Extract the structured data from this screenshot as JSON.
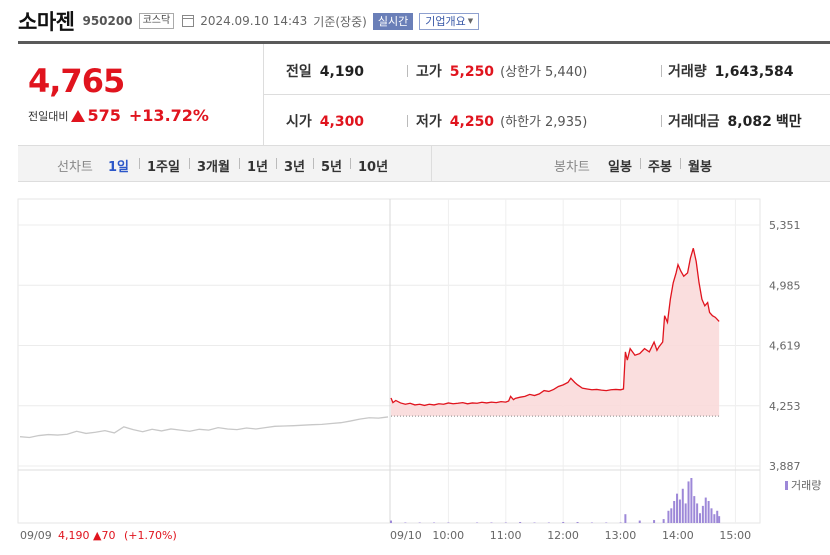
{
  "header": {
    "name": "소마젠",
    "code": "950200",
    "market": "코스닥",
    "timestamp": "2024.09.10 14:43",
    "basis": "기준(장중)",
    "realtime_label": "실시간",
    "company_button": "기업개요"
  },
  "summary": {
    "price": "4,765",
    "change_label": "전일대비",
    "change": "575",
    "change_pct": "+13.72%",
    "prev_close_label": "전일",
    "prev_close": "4,190",
    "high_label": "고가",
    "high": "5,250",
    "upper_limit_label": "(상한가",
    "upper_limit": "5,440)",
    "volume_label": "거래량",
    "volume": "1,643,584",
    "open_label": "시가",
    "open": "4,300",
    "low_label": "저가",
    "low": "4,250",
    "lower_limit_label": "(하한가",
    "lower_limit": "2,935)",
    "amount_label": "거래대금",
    "amount": "8,082",
    "amount_unit": "백만"
  },
  "tabs": {
    "line_label": "선차트",
    "periods": [
      "1일",
      "1주일",
      "3개월",
      "1년",
      "3년",
      "5년",
      "10년"
    ],
    "active_period": "1일",
    "candle_label": "봉차트",
    "candles": [
      "일봉",
      "주봉",
      "월봉"
    ]
  },
  "chart_data": {
    "type": "line",
    "y_ticks": [
      "5,351",
      "4,985",
      "4,619",
      "4,253",
      "3,887"
    ],
    "ylim": [
      3887,
      5351
    ],
    "volume_legend": "거래량",
    "x_ticks": [
      "09/09",
      "09/10",
      "10:00",
      "11:00",
      "12:00",
      "13:00",
      "14:00",
      "15:00"
    ],
    "prev_day_label": "09/09",
    "prev_day_close": "4,190",
    "prev_day_change": "▲70",
    "prev_day_change_pct": "(+1.70%)",
    "baseline": 4190,
    "colors": {
      "up": "#e0141e",
      "fill": "#fadada",
      "prev": "#c8c8c8",
      "volume": "#9d88d8"
    },
    "prev_day_series": [
      [
        0,
        4065
      ],
      [
        1,
        4060
      ],
      [
        2,
        4072
      ],
      [
        3,
        4078
      ],
      [
        4,
        4075
      ],
      [
        5,
        4080
      ],
      [
        6,
        4098
      ],
      [
        7,
        4085
      ],
      [
        8,
        4092
      ],
      [
        9,
        4102
      ],
      [
        10,
        4088
      ],
      [
        11,
        4125
      ],
      [
        12,
        4108
      ],
      [
        13,
        4095
      ],
      [
        14,
        4110
      ],
      [
        15,
        4100
      ],
      [
        16,
        4112
      ],
      [
        17,
        4105
      ],
      [
        18,
        4098
      ],
      [
        19,
        4110
      ],
      [
        20,
        4105
      ],
      [
        21,
        4120
      ],
      [
        22,
        4112
      ],
      [
        23,
        4108
      ],
      [
        24,
        4118
      ],
      [
        25,
        4112
      ],
      [
        26,
        4120
      ],
      [
        27,
        4128
      ],
      [
        28,
        4130
      ],
      [
        29,
        4132
      ],
      [
        30,
        4135
      ],
      [
        31,
        4138
      ],
      [
        32,
        4140
      ],
      [
        33,
        4145
      ],
      [
        34,
        4150
      ],
      [
        35,
        4160
      ],
      [
        36,
        4172
      ],
      [
        37,
        4180
      ],
      [
        38,
        4178
      ],
      [
        39,
        4185
      ]
    ],
    "today_series": [
      [
        "09:00",
        4300
      ],
      [
        "09:02",
        4272
      ],
      [
        "09:05",
        4285
      ],
      [
        "09:10",
        4270
      ],
      [
        "09:15",
        4262
      ],
      [
        "09:20",
        4268
      ],
      [
        "09:25",
        4258
      ],
      [
        "09:30",
        4262
      ],
      [
        "09:35",
        4255
      ],
      [
        "09:40",
        4262
      ],
      [
        "09:45",
        4258
      ],
      [
        "09:50",
        4265
      ],
      [
        "09:55",
        4262
      ],
      [
        "10:00",
        4270
      ],
      [
        "10:05",
        4265
      ],
      [
        "10:10",
        4268
      ],
      [
        "10:15",
        4272
      ],
      [
        "10:20",
        4265
      ],
      [
        "10:25",
        4270
      ],
      [
        "10:30",
        4268
      ],
      [
        "10:35",
        4274
      ],
      [
        "10:40",
        4270
      ],
      [
        "10:45",
        4275
      ],
      [
        "10:50",
        4272
      ],
      [
        "10:55",
        4278
      ],
      [
        "11:00",
        4275
      ],
      [
        "11:03",
        4282
      ],
      [
        "11:05",
        4310
      ],
      [
        "11:08",
        4290
      ],
      [
        "11:10",
        4298
      ],
      [
        "11:15",
        4305
      ],
      [
        "11:20",
        4310
      ],
      [
        "11:25",
        4322
      ],
      [
        "11:30",
        4315
      ],
      [
        "11:35",
        4325
      ],
      [
        "11:40",
        4345
      ],
      [
        "11:45",
        4340
      ],
      [
        "11:50",
        4352
      ],
      [
        "11:55",
        4370
      ],
      [
        "12:00",
        4380
      ],
      [
        "12:05",
        4395
      ],
      [
        "12:08",
        4420
      ],
      [
        "12:12",
        4395
      ],
      [
        "12:15",
        4380
      ],
      [
        "12:20",
        4360
      ],
      [
        "12:25",
        4355
      ],
      [
        "12:30",
        4350
      ],
      [
        "12:35",
        4352
      ],
      [
        "12:40",
        4348
      ],
      [
        "12:45",
        4345
      ],
      [
        "12:50",
        4350
      ],
      [
        "12:55",
        4352
      ],
      [
        "13:00",
        4350
      ],
      [
        "13:03",
        4355
      ],
      [
        "13:05",
        4580
      ],
      [
        "13:07",
        4530
      ],
      [
        "13:10",
        4600
      ],
      [
        "13:15",
        4560
      ],
      [
        "13:20",
        4570
      ],
      [
        "13:25",
        4600
      ],
      [
        "13:30",
        4580
      ],
      [
        "13:35",
        4640
      ],
      [
        "13:38",
        4590
      ],
      [
        "13:40",
        4610
      ],
      [
        "13:44",
        4640
      ],
      [
        "13:46",
        4800
      ],
      [
        "13:49",
        4760
      ],
      [
        "13:52",
        4900
      ],
      [
        "13:55",
        5000
      ],
      [
        "13:58",
        5060
      ],
      [
        "14:00",
        5110
      ],
      [
        "14:03",
        5070
      ],
      [
        "14:06",
        5040
      ],
      [
        "14:10",
        5060
      ],
      [
        "14:13",
        5150
      ],
      [
        "14:16",
        5210
      ],
      [
        "14:19",
        5130
      ],
      [
        "14:22",
        5000
      ],
      [
        "14:25",
        4900
      ],
      [
        "14:28",
        4860
      ],
      [
        "14:31",
        4880
      ],
      [
        "14:33",
        4820
      ],
      [
        "14:36",
        4800
      ],
      [
        "14:39",
        4790
      ],
      [
        "14:43",
        4765
      ]
    ],
    "today_volume": [
      [
        "09:00",
        5
      ],
      [
        "09:15",
        1
      ],
      [
        "09:30",
        1
      ],
      [
        "09:45",
        1
      ],
      [
        "10:00",
        1
      ],
      [
        "10:30",
        1
      ],
      [
        "10:45",
        1
      ],
      [
        "11:00",
        1
      ],
      [
        "11:15",
        2
      ],
      [
        "11:30",
        1
      ],
      [
        "11:45",
        1
      ],
      [
        "12:00",
        2
      ],
      [
        "12:15",
        2
      ],
      [
        "12:30",
        1
      ],
      [
        "12:45",
        1
      ],
      [
        "13:00",
        1
      ],
      [
        "13:05",
        18
      ],
      [
        "13:20",
        5
      ],
      [
        "13:35",
        6
      ],
      [
        "13:45",
        8
      ],
      [
        "13:50",
        25
      ],
      [
        "13:53",
        30
      ],
      [
        "13:56",
        45
      ],
      [
        "13:59",
        60
      ],
      [
        "14:02",
        48
      ],
      [
        "14:05",
        70
      ],
      [
        "14:08",
        40
      ],
      [
        "14:11",
        85
      ],
      [
        "14:14",
        92
      ],
      [
        "14:17",
        55
      ],
      [
        "14:20",
        40
      ],
      [
        "14:23",
        20
      ],
      [
        "14:26",
        35
      ],
      [
        "14:29",
        52
      ],
      [
        "14:32",
        45
      ],
      [
        "14:35",
        30
      ],
      [
        "14:38",
        18
      ],
      [
        "14:41",
        25
      ],
      [
        "14:43",
        14
      ]
    ]
  }
}
